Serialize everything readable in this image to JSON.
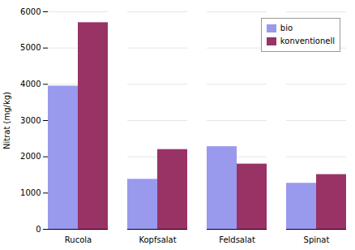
{
  "chart_data": {
    "type": "bar",
    "categories": [
      "Rucola",
      "Kopfsalat",
      "Feldsalat",
      "Spinat"
    ],
    "series": [
      {
        "name": "bio",
        "color": "#9999ee",
        "values": [
          3950,
          1380,
          2280,
          1270
        ]
      },
      {
        "name": "konventionell",
        "color": "#993366",
        "values": [
          5700,
          2200,
          1800,
          1510
        ]
      }
    ],
    "ylabel": "Nitrat (mg/kg)",
    "ylim": [
      0,
      6000
    ],
    "yticks": [
      0,
      1000,
      2000,
      3000,
      4000,
      5000,
      6000
    ],
    "grid": true,
    "legend": "upper right"
  }
}
